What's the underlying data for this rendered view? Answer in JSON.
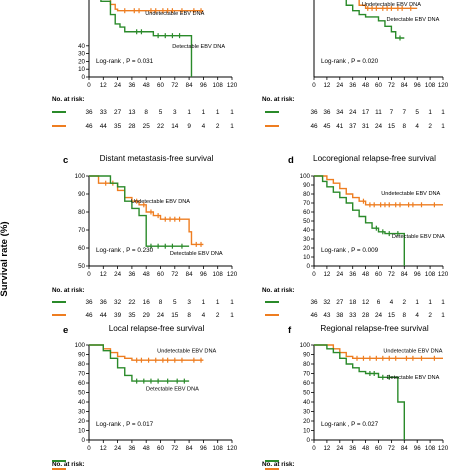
{
  "y_axis_label": "Survival rate (%)",
  "number_at_risk_label": "No. at risk:",
  "colors": {
    "detectable": "#2a8a2a",
    "undetectable": "#ee7d20",
    "axis": "#000000"
  },
  "chart_data": [
    {
      "id": "panel-a",
      "letter": "",
      "title": "",
      "type": "line",
      "ylim": [
        0,
        100
      ],
      "yticks": [
        0,
        10,
        20,
        30,
        40
      ],
      "xticks": [
        0,
        12,
        24,
        36,
        48,
        60,
        72,
        84,
        96,
        108,
        120
      ],
      "logrank": "Log-rank , P = 0.031",
      "crop_top": 6,
      "series": [
        {
          "name": "Undetectable EBV DNA",
          "color": "#ee7d20",
          "x": [
            0,
            12,
            18,
            22,
            24,
            36,
            48,
            60,
            84,
            96
          ],
          "y": [
            100,
            100,
            93,
            87,
            85,
            85,
            85,
            85,
            85,
            85
          ],
          "censor_x": [
            30,
            38,
            42,
            52,
            56,
            62,
            66,
            70,
            78,
            88,
            94
          ]
        },
        {
          "name": "Detectable EBV DNA",
          "color": "#2a8a2a",
          "x": [
            0,
            10,
            18,
            22,
            26,
            30,
            48,
            54,
            62,
            84,
            86
          ],
          "y": [
            100,
            97,
            80,
            68,
            64,
            58,
            58,
            53,
            53,
            53,
            0
          ],
          "censor_x": [
            40,
            44,
            58,
            64,
            70,
            76
          ]
        }
      ],
      "at_risk": [
        {
          "values": [
            "36",
            "33",
            "27",
            "13",
            "8",
            "5",
            "3",
            "1",
            "1",
            "1",
            "1"
          ]
        },
        {
          "values": [
            "46",
            "44",
            "35",
            "28",
            "25",
            "22",
            "14",
            "9",
            "4",
            "2",
            "1"
          ]
        }
      ]
    },
    {
      "id": "panel-b",
      "letter": "",
      "title": "",
      "type": "line",
      "ylim": [
        0,
        100
      ],
      "yticks": [],
      "xticks": [
        0,
        12,
        24,
        36,
        48,
        60,
        72,
        84,
        96,
        108,
        120
      ],
      "logrank": "Log-rank , P = 0.020",
      "crop_top": 6,
      "series": [
        {
          "name": "Undetectable EBV DNA",
          "color": "#ee7d20",
          "x": [
            0,
            36,
            42,
            48,
            60,
            84,
            96
          ],
          "y": [
            100,
            100,
            92,
            88,
            88,
            88,
            88
          ],
          "censor_x": [
            50,
            54,
            58,
            64,
            68,
            72,
            78,
            82,
            90
          ]
        },
        {
          "name": "Detectable EBV DNA",
          "color": "#2a8a2a",
          "x": [
            0,
            24,
            30,
            36,
            42,
            48,
            60,
            66,
            72,
            76,
            84
          ],
          "y": [
            100,
            100,
            92,
            85,
            80,
            77,
            72,
            65,
            58,
            50,
            50
          ],
          "censor_x": [
            80
          ]
        }
      ],
      "at_risk": [
        {
          "values": [
            "36",
            "36",
            "34",
            "24",
            "17",
            "11",
            "7",
            "7",
            "5",
            "1",
            "1"
          ]
        },
        {
          "values": [
            "46",
            "45",
            "41",
            "37",
            "31",
            "24",
            "15",
            "8",
            "4",
            "2",
            "1"
          ]
        }
      ]
    },
    {
      "id": "panel-c",
      "letter": "c",
      "title": "Distant metastasis-free survival",
      "type": "line",
      "ylim": [
        50,
        100
      ],
      "yticks": [
        50,
        60,
        70,
        80,
        90,
        100
      ],
      "xticks": [
        0,
        12,
        24,
        36,
        48,
        60,
        72,
        84,
        96,
        108,
        120
      ],
      "logrank": "Log-rank , P = 0.230",
      "crop_top": 0,
      "series": [
        {
          "name": "Undetectable EBV DNA",
          "color": "#ee7d20",
          "x": [
            0,
            8,
            12,
            24,
            30,
            36,
            42,
            48,
            54,
            60,
            78,
            84,
            86,
            96
          ],
          "y": [
            100,
            96,
            96,
            92,
            88,
            86,
            84,
            80,
            78,
            76,
            76,
            69,
            62,
            62
          ],
          "censor_x": [
            14,
            20,
            40,
            46,
            52,
            58,
            64,
            68,
            72,
            76,
            90,
            94
          ]
        },
        {
          "name": "Detectable EBV DNA",
          "color": "#2a8a2a",
          "x": [
            0,
            12,
            18,
            24,
            30,
            36,
            42,
            48,
            60,
            62,
            72,
            84
          ],
          "y": [
            100,
            100,
            96,
            94,
            86,
            82,
            78,
            61,
            61,
            61,
            61,
            61
          ],
          "censor_x": [
            52,
            58,
            64,
            70,
            78
          ]
        }
      ],
      "annotations": [
        {
          "text": "Undetectable EBV DNA",
          "x": 60,
          "y": 85
        },
        {
          "text": "Detectable EBV DNA",
          "x": 90,
          "y": 56
        }
      ],
      "at_risk": [
        {
          "values": [
            "36",
            "36",
            "32",
            "22",
            "16",
            "8",
            "5",
            "3",
            "1",
            "1",
            "1"
          ]
        },
        {
          "values": [
            "46",
            "44",
            "39",
            "35",
            "29",
            "24",
            "15",
            "8",
            "4",
            "2",
            "1"
          ]
        }
      ]
    },
    {
      "id": "panel-d",
      "letter": "d",
      "title": "Locoregional relapse-free survival",
      "type": "line",
      "ylim": [
        0,
        100
      ],
      "yticks": [
        0,
        10,
        20,
        30,
        40,
        50,
        60,
        70,
        80,
        90,
        100
      ],
      "xticks": [
        0,
        12,
        24,
        36,
        48,
        60,
        72,
        84,
        96,
        108,
        120
      ],
      "logrank": "Log-rank , P = 0.009",
      "crop_top": 0,
      "series": [
        {
          "name": "Undetectable EBV DNA",
          "color": "#ee7d20",
          "x": [
            0,
            12,
            18,
            24,
            30,
            36,
            42,
            48,
            60,
            72,
            84,
            96,
            120
          ],
          "y": [
            100,
            96,
            92,
            86,
            80,
            76,
            72,
            68,
            68,
            68,
            68,
            68,
            68
          ],
          "censor_x": [
            46,
            52,
            56,
            62,
            66,
            70,
            76,
            80,
            88,
            92,
            100,
            112
          ]
        },
        {
          "name": "Detectable EBV DNA",
          "color": "#2a8a2a",
          "x": [
            0,
            8,
            12,
            18,
            24,
            30,
            36,
            42,
            48,
            54,
            60,
            66,
            72,
            84
          ],
          "y": [
            100,
            94,
            88,
            82,
            76,
            70,
            62,
            55,
            48,
            42,
            38,
            36,
            36,
            0
          ],
          "censor_x": [
            58,
            64,
            70,
            78
          ]
        }
      ],
      "annotations": [
        {
          "text": "Undetectable EBV DNA",
          "x": 90,
          "y": 79
        },
        {
          "text": "Detectable EBV DNA",
          "x": 97,
          "y": 31
        }
      ],
      "at_risk": [
        {
          "values": [
            "36",
            "32",
            "27",
            "18",
            "12",
            "6",
            "4",
            "2",
            "1",
            "1",
            "1"
          ]
        },
        {
          "values": [
            "46",
            "43",
            "38",
            "33",
            "28",
            "24",
            "15",
            "8",
            "4",
            "2",
            "1"
          ]
        }
      ]
    },
    {
      "id": "panel-e",
      "letter": "e",
      "title": "Local relapse-free survival",
      "type": "line",
      "ylim": [
        0,
        100
      ],
      "yticks": [
        0,
        10,
        20,
        30,
        40,
        50,
        60,
        70,
        80,
        90,
        100
      ],
      "xticks": [
        0,
        12,
        24,
        36,
        48,
        60,
        72,
        84,
        96,
        108,
        120
      ],
      "logrank": "Log-rank , P = 0.017",
      "crop_top": 0,
      "series": [
        {
          "name": "Undetectable EBV DNA",
          "color": "#ee7d20",
          "x": [
            0,
            12,
            18,
            24,
            30,
            36,
            60,
            84,
            96
          ],
          "y": [
            100,
            96,
            92,
            88,
            86,
            84,
            84,
            84,
            84
          ],
          "censor_x": [
            40,
            44,
            50,
            56,
            62,
            66,
            72,
            78,
            88,
            94
          ]
        },
        {
          "name": "Detectable EBV DNA",
          "color": "#2a8a2a",
          "x": [
            0,
            12,
            18,
            24,
            30,
            36,
            60,
            84
          ],
          "y": [
            100,
            94,
            86,
            76,
            68,
            62,
            62,
            62
          ],
          "censor_x": [
            40,
            46,
            52,
            58,
            66,
            74,
            80
          ]
        }
      ],
      "annotations": [
        {
          "text": "Undetectable EBV DNA",
          "x": 82,
          "y": 92
        },
        {
          "text": "Detectable EBV DNA",
          "x": 70,
          "y": 52
        }
      ],
      "at_risk": []
    },
    {
      "id": "panel-f",
      "letter": "f",
      "title": "Regional relapse-free survival",
      "type": "line",
      "ylim": [
        0,
        100
      ],
      "yticks": [
        0,
        10,
        20,
        30,
        40,
        50,
        60,
        70,
        80,
        90,
        100
      ],
      "xticks": [
        0,
        12,
        24,
        36,
        48,
        60,
        72,
        84,
        96,
        108,
        120
      ],
      "logrank": "Log-rank , P = 0.027",
      "crop_top": 0,
      "series": [
        {
          "name": "Undetectable EBV DNA",
          "color": "#ee7d20",
          "x": [
            0,
            18,
            24,
            30,
            36,
            60,
            84,
            96,
            120
          ],
          "y": [
            100,
            96,
            92,
            88,
            86,
            86,
            86,
            86,
            86
          ],
          "censor_x": [
            40,
            46,
            52,
            58,
            64,
            70,
            76,
            86,
            92,
            100,
            112
          ]
        },
        {
          "name": "Detectable EBV DNA",
          "color": "#2a8a2a",
          "x": [
            0,
            12,
            18,
            24,
            30,
            36,
            42,
            48,
            60,
            72,
            78,
            84
          ],
          "y": [
            100,
            96,
            92,
            86,
            80,
            76,
            72,
            70,
            66,
            66,
            40,
            0
          ],
          "censor_x": [
            52,
            56,
            64,
            70
          ]
        }
      ],
      "annotations": [
        {
          "text": "Undetectable EBV DNA",
          "x": 92,
          "y": 92
        },
        {
          "text": "Detectable EBV DNA",
          "x": 92,
          "y": 64
        }
      ],
      "at_risk": []
    }
  ]
}
